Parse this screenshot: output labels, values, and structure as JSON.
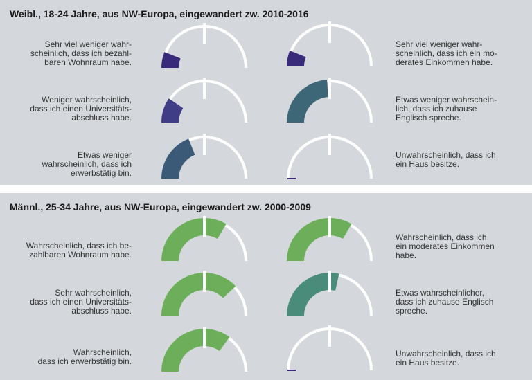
{
  "chart_data": [
    {
      "type": "gauge",
      "title": "Weibl., 18-24 Jahre, aus NW-Europa, eingewandert zw. 2010-2016",
      "scale": [
        0,
        1
      ],
      "items": [
        {
          "label": "Sehr viel weniger wahr-\nscheinlich, dass ich bezahl-\nbaren Wohnraum habe.",
          "value": 0.12,
          "color": "#3a2a7a",
          "side": "left",
          "row": 0
        },
        {
          "label": "Sehr viel weniger wahr-\nscheinlich, dass ich ein mo-\nderates Einkommen habe.",
          "value": 0.12,
          "color": "#3a2a7a",
          "side": "right",
          "row": 0
        },
        {
          "label": "Weniger wahrscheinlich,\ndass ich einen Universitäts-\nabschluss habe.",
          "value": 0.19,
          "color": "#3f3d85",
          "side": "left",
          "row": 1
        },
        {
          "label": "Etwas weniger wahrschein-\nlich, dass ich zuhause\nEnglisch spreche.",
          "value": 0.48,
          "color": "#3d6676",
          "side": "right",
          "row": 1
        },
        {
          "label": "Etwas weniger\nwahrscheinlich, dass ich\nerwerbstätig bin.",
          "value": 0.38,
          "color": "#3b5a78",
          "side": "left",
          "row": 2
        },
        {
          "label": "Unwahrscheinlich, dass ich\nein Haus besitze.",
          "value": 0.0,
          "color": "#3a2a7a",
          "side": "right",
          "row": 2
        }
      ]
    },
    {
      "type": "gauge",
      "title": "Männl., 25-34 Jahre, aus NW-Europa, eingewandert zw. 2000-2009",
      "scale": [
        0,
        1
      ],
      "items": [
        {
          "label": "Wahrscheinlich, dass ich be-\nzahlbaren Wohnraum habe.",
          "value": 0.67,
          "color": "#6cae5a",
          "side": "left",
          "row": 0
        },
        {
          "label": "Wahrscheinlich, dass ich\nein moderates Einkommen\nhabe.",
          "value": 0.67,
          "color": "#6cae5a",
          "side": "right",
          "row": 0
        },
        {
          "label": "Sehr wahrscheinlich,\ndass ich einen Universitäts-\nabschluss habe.",
          "value": 0.76,
          "color": "#6cae5a",
          "side": "left",
          "row": 1
        },
        {
          "label": "Etwas wahrscheinlicher,\ndass ich zuhause Englisch\nspreche.",
          "value": 0.57,
          "color": "#4a8c7a",
          "side": "right",
          "row": 1
        },
        {
          "label": "Wahrscheinlich,\ndass ich erwerbstätig bin.",
          "value": 0.7,
          "color": "#6cae5a",
          "side": "left",
          "row": 2
        },
        {
          "label": "Unwahrscheinlich, dass ich\nein Haus besitze.",
          "value": 0.0,
          "color": "#3a2a7a",
          "side": "right",
          "row": 2
        }
      ]
    }
  ]
}
